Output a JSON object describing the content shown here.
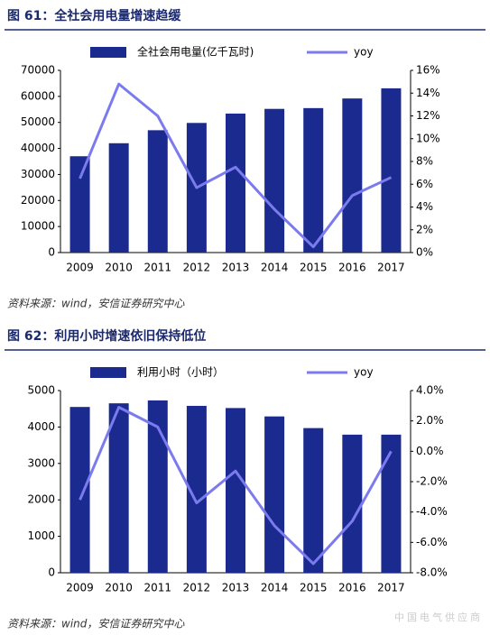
{
  "chart_data": [
    {
      "type": "combo",
      "title": "图 61：全社会用电量增速趋缓",
      "categories": [
        "2009",
        "2010",
        "2011",
        "2012",
        "2013",
        "2014",
        "2015",
        "2016",
        "2017"
      ],
      "series": [
        {
          "name": "全社会用电量(亿千瓦时)",
          "color": "#1b2a8e",
          "values": [
            37000,
            42000,
            47000,
            49800,
            53400,
            55200,
            55500,
            59200,
            63100
          ]
        },
        {
          "name": "yoy",
          "color": "#7b7bef",
          "axis": "y2",
          "values": [
            6.5,
            14.8,
            12,
            5.7,
            7.5,
            3.8,
            0.5,
            5,
            6.6
          ]
        }
      ],
      "ylim": [
        0,
        70000
      ],
      "yticks": [
        0,
        10000,
        20000,
        30000,
        40000,
        50000,
        60000,
        70000
      ],
      "y2lim": [
        0,
        16
      ],
      "y2ticks": [
        {
          "value": 0,
          "label": "0%"
        },
        {
          "value": 2,
          "label": "2%"
        },
        {
          "value": 4,
          "label": "4%"
        },
        {
          "value": 6,
          "label": "6%"
        },
        {
          "value": 8,
          "label": "8%"
        },
        {
          "value": 10,
          "label": "10%"
        },
        {
          "value": 12,
          "label": "12%"
        },
        {
          "value": 14,
          "label": "14%"
        },
        {
          "value": 16,
          "label": "16%"
        }
      ],
      "source": "资料来源：wind，安信证券研究中心"
    },
    {
      "type": "combo",
      "title": "图 62：利用小时增速依旧保持低位",
      "categories": [
        "2009",
        "2010",
        "2011",
        "2012",
        "2013",
        "2014",
        "2015",
        "2016",
        "2017"
      ],
      "series": [
        {
          "name": "利用小时（小时）",
          "color": "#1b2a8e",
          "values": [
            4550,
            4650,
            4730,
            4580,
            4520,
            4290,
            3970,
            3790,
            3790
          ]
        },
        {
          "name": "yoy",
          "color": "#7b7bef",
          "axis": "y2",
          "values": [
            -3.2,
            2.9,
            1.6,
            -3.4,
            -1.3,
            -4.9,
            -7.4,
            -4.6,
            0
          ]
        }
      ],
      "ylim": [
        0,
        5000
      ],
      "yticks": [
        0,
        1000,
        2000,
        3000,
        4000,
        5000
      ],
      "y2lim": [
        -8,
        4
      ],
      "y2ticks": [
        {
          "value": -8,
          "label": "-8.0%"
        },
        {
          "value": -6,
          "label": "-6.0%"
        },
        {
          "value": -4,
          "label": "-4.0%"
        },
        {
          "value": -2,
          "label": "-2.0%"
        },
        {
          "value": 0,
          "label": "0.0%"
        },
        {
          "value": 2,
          "label": "2.0%"
        },
        {
          "value": 4,
          "label": "4.0%"
        }
      ],
      "source": "资料来源：wind，安信证券研究中心",
      "watermark": "中国电气供应商"
    }
  ]
}
